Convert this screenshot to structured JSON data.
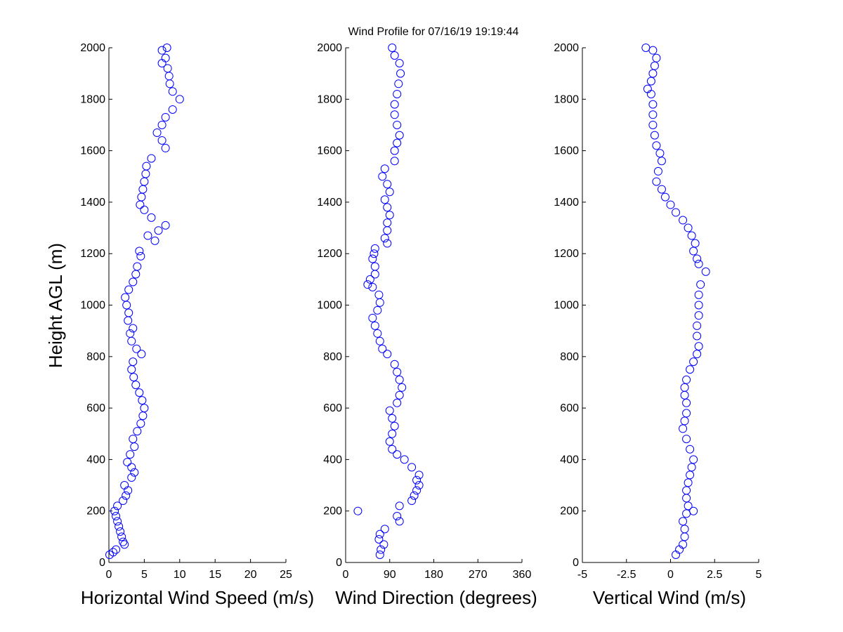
{
  "title": "Wind Profile for  07/16/19 19:19:44",
  "colors": {
    "marker": "#0000ff",
    "axis": "#000000",
    "background": "#ffffff"
  },
  "chart_data": [
    {
      "type": "scatter",
      "xlabel": "Horizontal Wind Speed (m/s)",
      "ylabel": "Height AGL (m)",
      "xlim": [
        0,
        25
      ],
      "ylim": [
        0,
        2000
      ],
      "xticks": [
        "0",
        "5",
        "10",
        "15",
        "20",
        "25"
      ],
      "yticks": [
        "0",
        "200",
        "400",
        "600",
        "800",
        "1000",
        "1200",
        "1400",
        "1600",
        "1800",
        "2000"
      ],
      "grid": false,
      "marker": "open-circle",
      "points": [
        [
          0.1,
          30
        ],
        [
          0.6,
          40
        ],
        [
          1.0,
          50
        ],
        [
          2.2,
          70
        ],
        [
          2.0,
          80
        ],
        [
          1.8,
          100
        ],
        [
          1.6,
          120
        ],
        [
          1.4,
          140
        ],
        [
          1.2,
          160
        ],
        [
          1.0,
          180
        ],
        [
          0.8,
          200
        ],
        [
          1.2,
          220
        ],
        [
          2.0,
          240
        ],
        [
          2.4,
          260
        ],
        [
          2.7,
          280
        ],
        [
          2.2,
          300
        ],
        [
          3.2,
          330
        ],
        [
          3.6,
          350
        ],
        [
          3.2,
          370
        ],
        [
          2.6,
          390
        ],
        [
          3.0,
          420
        ],
        [
          3.6,
          450
        ],
        [
          3.4,
          480
        ],
        [
          4.0,
          510
        ],
        [
          4.5,
          540
        ],
        [
          4.8,
          570
        ],
        [
          5.0,
          600
        ],
        [
          4.7,
          630
        ],
        [
          4.3,
          660
        ],
        [
          3.8,
          690
        ],
        [
          3.5,
          720
        ],
        [
          3.2,
          750
        ],
        [
          3.4,
          780
        ],
        [
          4.6,
          810
        ],
        [
          3.9,
          830
        ],
        [
          3.2,
          860
        ],
        [
          3.0,
          890
        ],
        [
          3.4,
          910
        ],
        [
          2.7,
          940
        ],
        [
          2.8,
          970
        ],
        [
          2.5,
          1000
        ],
        [
          2.3,
          1030
        ],
        [
          2.8,
          1060
        ],
        [
          3.4,
          1090
        ],
        [
          3.8,
          1120
        ],
        [
          4.0,
          1150
        ],
        [
          4.5,
          1190
        ],
        [
          4.3,
          1210
        ],
        [
          6.5,
          1250
        ],
        [
          5.5,
          1270
        ],
        [
          7.0,
          1290
        ],
        [
          8.0,
          1310
        ],
        [
          6.0,
          1340
        ],
        [
          5.0,
          1370
        ],
        [
          4.4,
          1390
        ],
        [
          4.6,
          1420
        ],
        [
          4.8,
          1450
        ],
        [
          5.0,
          1480
        ],
        [
          5.2,
          1510
        ],
        [
          5.3,
          1540
        ],
        [
          6.0,
          1570
        ],
        [
          8.0,
          1610
        ],
        [
          7.5,
          1640
        ],
        [
          6.8,
          1670
        ],
        [
          7.5,
          1700
        ],
        [
          8.0,
          1730
        ],
        [
          9.0,
          1760
        ],
        [
          10.0,
          1800
        ],
        [
          9.0,
          1830
        ],
        [
          8.6,
          1860
        ],
        [
          8.5,
          1890
        ],
        [
          8.3,
          1920
        ],
        [
          7.5,
          1940
        ],
        [
          8.0,
          1960
        ],
        [
          7.5,
          1990
        ],
        [
          8.2,
          2000
        ]
      ]
    },
    {
      "type": "scatter",
      "xlabel": "Wind Direction (degrees)",
      "xlim": [
        0,
        360
      ],
      "ylim": [
        0,
        2000
      ],
      "xticks": [
        "0",
        "90",
        "180",
        "270",
        "360"
      ],
      "yticks": [
        "0",
        "200",
        "400",
        "600",
        "800",
        "1000",
        "1200",
        "1400",
        "1600",
        "1800",
        "2000"
      ],
      "grid": false,
      "marker": "open-circle",
      "points": [
        [
          70,
          30
        ],
        [
          72,
          50
        ],
        [
          78,
          70
        ],
        [
          68,
          90
        ],
        [
          70,
          110
        ],
        [
          80,
          130
        ],
        [
          110,
          160
        ],
        [
          105,
          180
        ],
        [
          25,
          200
        ],
        [
          110,
          220
        ],
        [
          135,
          240
        ],
        [
          140,
          260
        ],
        [
          145,
          280
        ],
        [
          150,
          300
        ],
        [
          145,
          320
        ],
        [
          150,
          340
        ],
        [
          135,
          370
        ],
        [
          120,
          400
        ],
        [
          105,
          420
        ],
        [
          95,
          440
        ],
        [
          90,
          470
        ],
        [
          95,
          500
        ],
        [
          100,
          530
        ],
        [
          95,
          560
        ],
        [
          90,
          590
        ],
        [
          105,
          620
        ],
        [
          110,
          650
        ],
        [
          115,
          680
        ],
        [
          110,
          710
        ],
        [
          105,
          740
        ],
        [
          100,
          770
        ],
        [
          85,
          810
        ],
        [
          75,
          830
        ],
        [
          70,
          860
        ],
        [
          65,
          890
        ],
        [
          60,
          920
        ],
        [
          55,
          950
        ],
        [
          65,
          980
        ],
        [
          70,
          1010
        ],
        [
          68,
          1040
        ],
        [
          55,
          1070
        ],
        [
          45,
          1080
        ],
        [
          50,
          1100
        ],
        [
          60,
          1120
        ],
        [
          60,
          1150
        ],
        [
          55,
          1180
        ],
        [
          58,
          1200
        ],
        [
          60,
          1220
        ],
        [
          85,
          1240
        ],
        [
          80,
          1260
        ],
        [
          85,
          1290
        ],
        [
          85,
          1320
        ],
        [
          90,
          1350
        ],
        [
          85,
          1380
        ],
        [
          80,
          1410
        ],
        [
          90,
          1440
        ],
        [
          85,
          1470
        ],
        [
          75,
          1500
        ],
        [
          80,
          1530
        ],
        [
          100,
          1560
        ],
        [
          100,
          1600
        ],
        [
          105,
          1630
        ],
        [
          110,
          1660
        ],
        [
          105,
          1700
        ],
        [
          100,
          1740
        ],
        [
          100,
          1780
        ],
        [
          105,
          1820
        ],
        [
          108,
          1860
        ],
        [
          112,
          1900
        ],
        [
          110,
          1940
        ],
        [
          100,
          1970
        ],
        [
          95,
          2000
        ]
      ]
    },
    {
      "type": "scatter",
      "xlabel": "Vertical Wind (m/s)",
      "xlim": [
        -5,
        5
      ],
      "ylim": [
        0,
        2000
      ],
      "xticks": [
        "-5",
        "-2.5",
        "0",
        "2.5",
        "5"
      ],
      "yticks": [
        "0",
        "200",
        "400",
        "600",
        "800",
        "1000",
        "1200",
        "1400",
        "1600",
        "1800",
        "2000"
      ],
      "grid": false,
      "marker": "open-circle",
      "points": [
        [
          0.3,
          30
        ],
        [
          0.5,
          50
        ],
        [
          0.7,
          70
        ],
        [
          0.8,
          100
        ],
        [
          0.8,
          130
        ],
        [
          0.7,
          160
        ],
        [
          0.9,
          190
        ],
        [
          1.3,
          200
        ],
        [
          1.0,
          220
        ],
        [
          0.9,
          250
        ],
        [
          0.9,
          280
        ],
        [
          1.0,
          310
        ],
        [
          1.1,
          340
        ],
        [
          1.2,
          370
        ],
        [
          1.3,
          400
        ],
        [
          1.1,
          440
        ],
        [
          0.9,
          480
        ],
        [
          0.7,
          520
        ],
        [
          0.8,
          550
        ],
        [
          0.9,
          580
        ],
        [
          0.9,
          620
        ],
        [
          0.8,
          650
        ],
        [
          0.8,
          680
        ],
        [
          0.9,
          710
        ],
        [
          1.1,
          750
        ],
        [
          1.3,
          780
        ],
        [
          1.5,
          810
        ],
        [
          1.6,
          840
        ],
        [
          1.5,
          880
        ],
        [
          1.5,
          920
        ],
        [
          1.6,
          960
        ],
        [
          1.6,
          1000
        ],
        [
          1.6,
          1040
        ],
        [
          1.7,
          1080
        ],
        [
          2.0,
          1130
        ],
        [
          1.6,
          1160
        ],
        [
          1.5,
          1180
        ],
        [
          1.3,
          1210
        ],
        [
          1.4,
          1240
        ],
        [
          1.2,
          1270
        ],
        [
          1.0,
          1300
        ],
        [
          0.7,
          1330
        ],
        [
          0.3,
          1360
        ],
        [
          0.0,
          1390
        ],
        [
          -0.3,
          1420
        ],
        [
          -0.5,
          1450
        ],
        [
          -0.8,
          1480
        ],
        [
          -0.7,
          1520
        ],
        [
          -0.5,
          1560
        ],
        [
          -0.6,
          1590
        ],
        [
          -0.8,
          1620
        ],
        [
          -0.9,
          1660
        ],
        [
          -1.0,
          1700
        ],
        [
          -1.0,
          1740
        ],
        [
          -1.0,
          1780
        ],
        [
          -1.1,
          1820
        ],
        [
          -1.3,
          1840
        ],
        [
          -1.1,
          1870
        ],
        [
          -1.0,
          1900
        ],
        [
          -0.9,
          1930
        ],
        [
          -0.8,
          1960
        ],
        [
          -1.0,
          1990
        ],
        [
          -1.4,
          2000
        ]
      ]
    }
  ]
}
